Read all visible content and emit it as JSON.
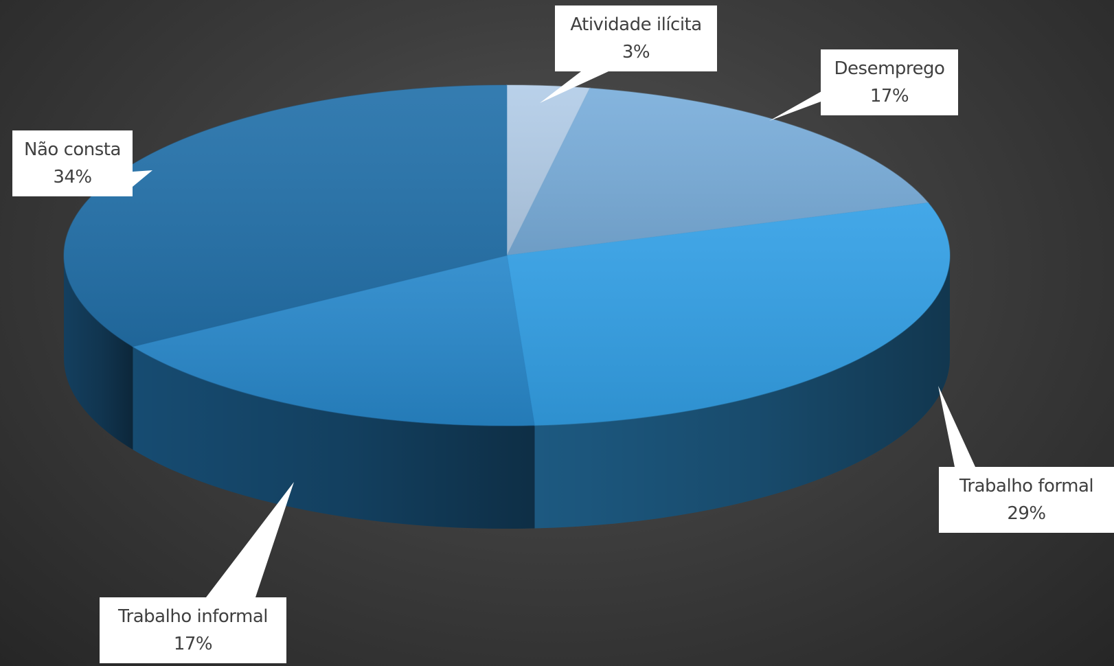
{
  "chart_data": {
    "type": "pie",
    "style": "3d",
    "title": "",
    "slices": [
      {
        "label": "Atividade ilícita",
        "value": 3,
        "display": "3%",
        "color": "#b3cde8"
      },
      {
        "label": "Desemprego",
        "value": 17,
        "display": "17%",
        "color": "#7aaedb"
      },
      {
        "label": "Trabalho formal",
        "value": 29,
        "display": "29%",
        "color": "#33a0e6"
      },
      {
        "label": "Trabalho informal",
        "value": 17,
        "display": "17%",
        "color": "#2888cb"
      },
      {
        "label": "Não consta",
        "value": 34,
        "display": "34%",
        "color": "#2371aa"
      }
    ],
    "legend": "none",
    "data_labels": "callout"
  }
}
